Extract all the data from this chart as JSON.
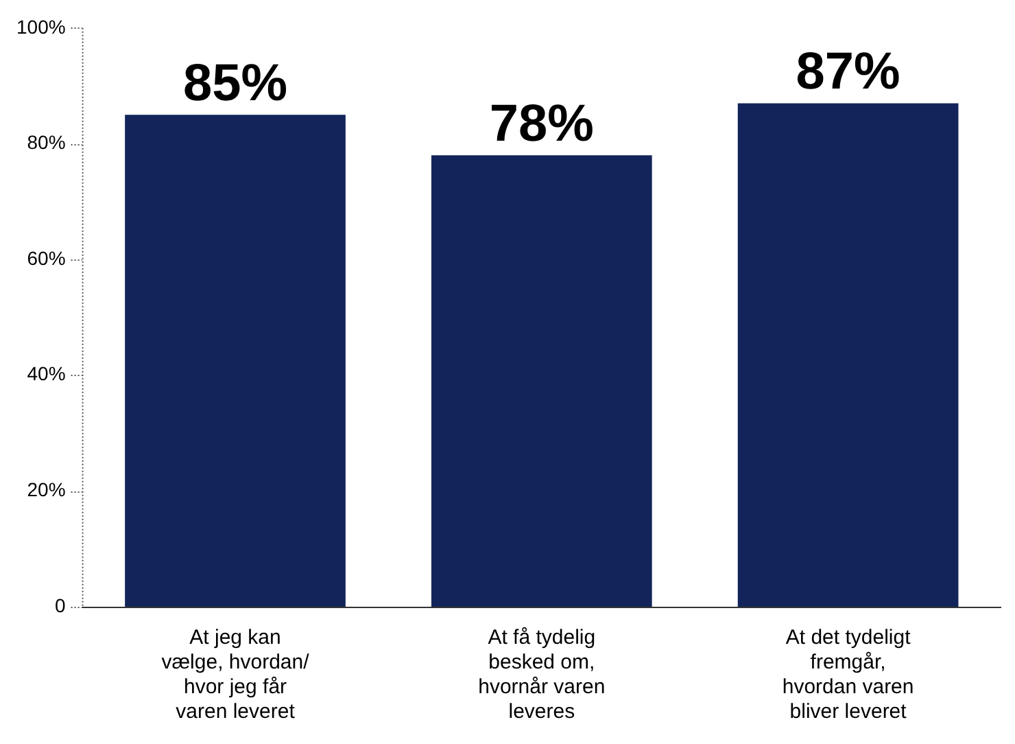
{
  "chart_data": {
    "type": "bar",
    "categories": [
      "At jeg kan vælge, hvordan/ hvor jeg får varen leveret",
      "At få tydelig besked om, hvornår varen leveres",
      "At det tydeligt fremgår, hvordan varen bliver leveret"
    ],
    "values": [
      85,
      78,
      87
    ],
    "color": "#12245a",
    "ylim": [
      0,
      100
    ],
    "yticks": [
      0,
      {
        "value": 20,
        "label": "20%"
      },
      {
        "value": 40,
        "label": "40%"
      },
      {
        "value": 60,
        "label": "60%"
      },
      {
        "value": 80,
        "label": "80%"
      },
      {
        "value": 100,
        "label": "100%"
      }
    ],
    "value_labels": [
      "85%",
      "78%",
      "87%"
    ],
    "grid": false,
    "legend": false
  }
}
